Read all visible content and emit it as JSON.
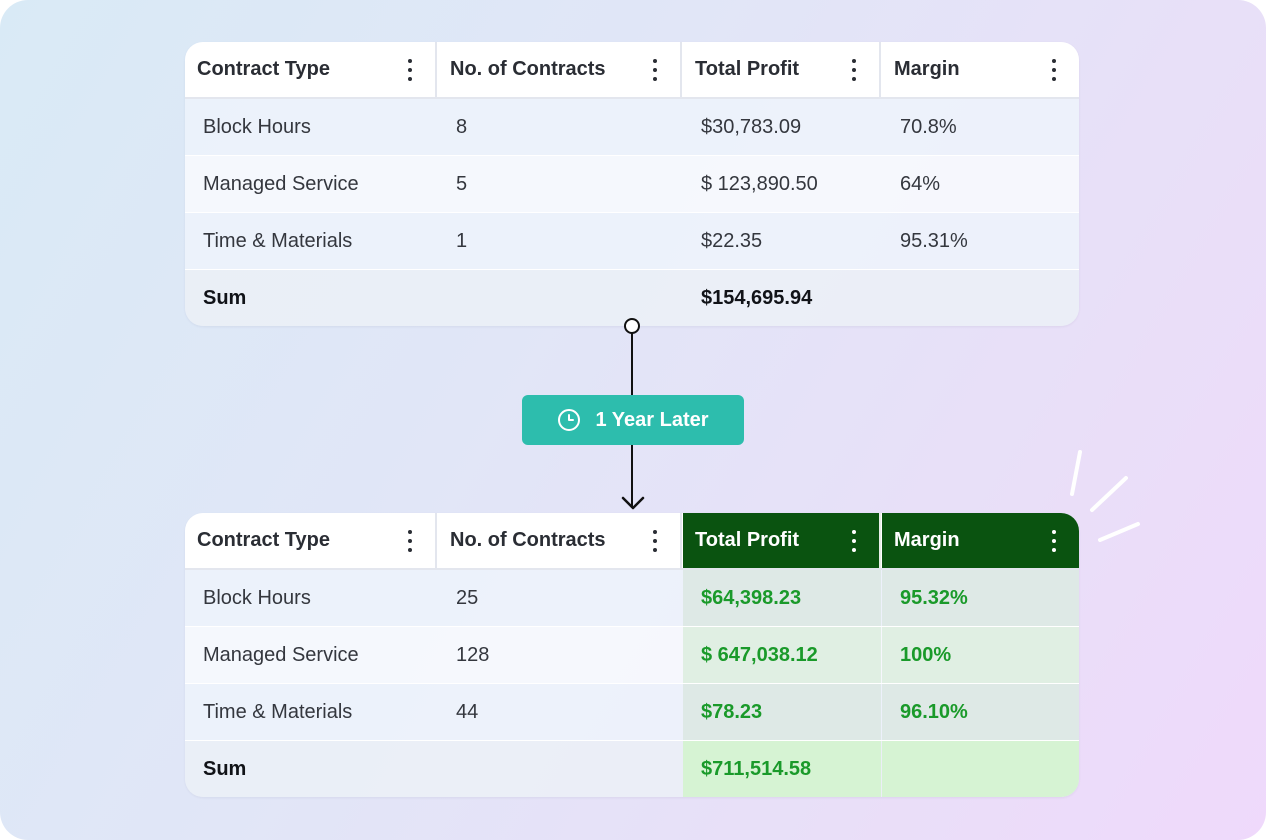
{
  "columns": [
    "Contract Type",
    "No. of Contracts",
    "Total Profit",
    "Margin"
  ],
  "before": {
    "rows": [
      {
        "type": "Block Hours",
        "count": "8",
        "profit": "$30,783.09",
        "margin": "70.8%"
      },
      {
        "type": "Managed Service",
        "count": "5",
        "profit": "$ 123,890.50",
        "margin": "64%"
      },
      {
        "type": "Time & Materials",
        "count": "1",
        "profit": "$22.35",
        "margin": "95.31%"
      }
    ],
    "sum_label": "Sum",
    "sum_profit": "$154,695.94"
  },
  "transition": {
    "label": "1 Year Later",
    "icon": "clock-icon"
  },
  "after": {
    "rows": [
      {
        "type": "Block Hours",
        "count": "25",
        "profit": "$64,398.23",
        "margin": "95.32%"
      },
      {
        "type": "Managed Service",
        "count": "128",
        "profit": "$ 647,038.12",
        "margin": "100%"
      },
      {
        "type": "Time & Materials",
        "count": "44",
        "profit": "$78.23",
        "margin": "96.10%"
      }
    ],
    "sum_label": "Sum",
    "sum_profit": "$711,514.58"
  },
  "colors": {
    "accent_teal": "#2dbdad",
    "header_highlight": "#0a5310",
    "positive_text": "#1a9a2a"
  }
}
